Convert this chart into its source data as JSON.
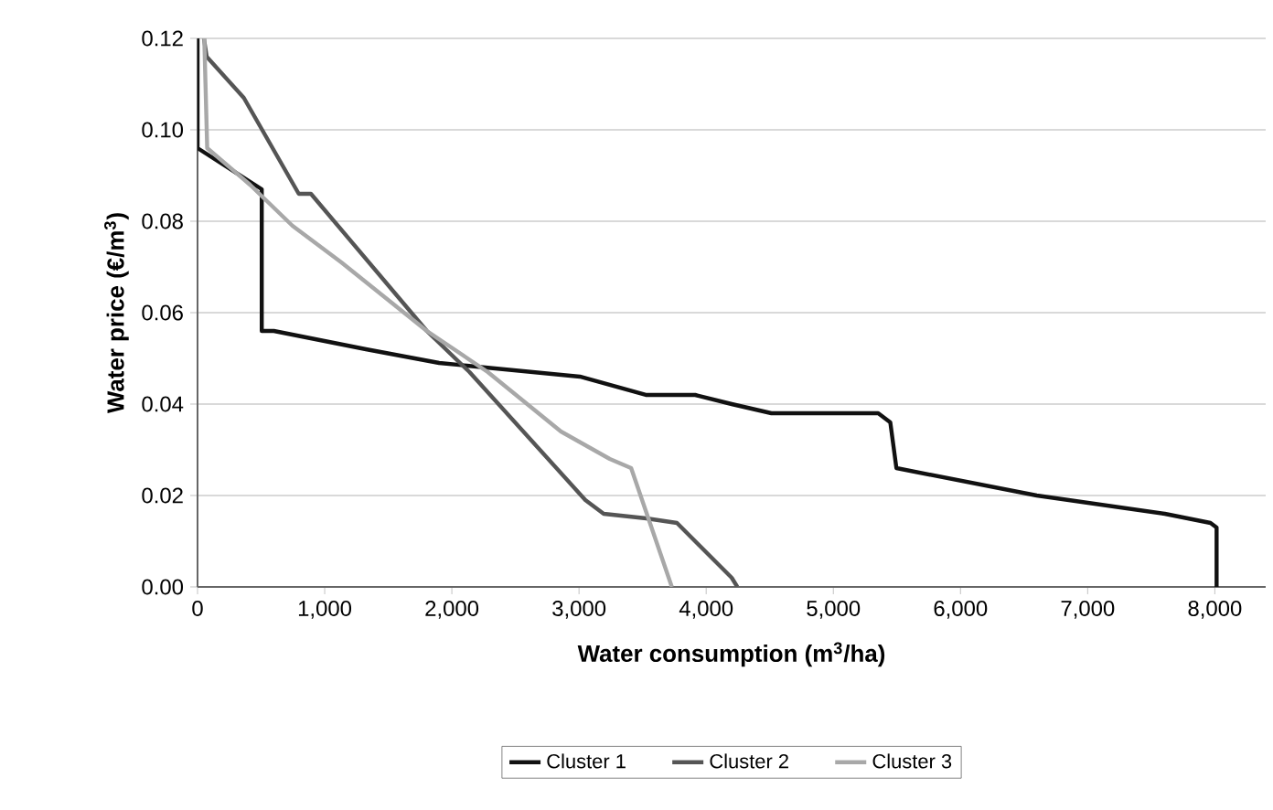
{
  "chart_data": {
    "type": "line",
    "xlabel": "Water consumption (m$^{3}$/ha)",
    "ylabel": "Water price (€/m$^{3}$)",
    "xlim": [
      0,
      8400
    ],
    "ylim": [
      0,
      0.12
    ],
    "xticks": [
      {
        "value": 0,
        "label": "0"
      },
      {
        "value": 1000,
        "label": "1,000"
      },
      {
        "value": 2000,
        "label": "2,000"
      },
      {
        "value": 3000,
        "label": "3,000"
      },
      {
        "value": 4000,
        "label": "4,000"
      },
      {
        "value": 5000,
        "label": "5,000"
      },
      {
        "value": 6000,
        "label": "6,000"
      },
      {
        "value": 7000,
        "label": "7,000"
      },
      {
        "value": 8000,
        "label": "8,000"
      }
    ],
    "yticks": [
      {
        "value": 0,
        "label": "0.00"
      },
      {
        "value": 0.02,
        "label": "0.02"
      },
      {
        "value": 0.04,
        "label": "0.04"
      },
      {
        "value": 0.06,
        "label": "0.06"
      },
      {
        "value": 0.08,
        "label": "0.08"
      },
      {
        "value": 0.1,
        "label": "0.10"
      },
      {
        "value": 0.12,
        "label": "0.12"
      }
    ],
    "grid": "y",
    "legend": "bottom",
    "marker": "none",
    "line_style": "solid",
    "series": [
      {
        "name": "Cluster 1",
        "color": "#111111",
        "x": [
          0,
          0,
          505,
          505,
          600,
          1324,
          1900,
          3007,
          3525,
          3914,
          4201,
          4513,
          5353,
          5448,
          5496,
          6600,
          7607,
          7966,
          8014,
          8014
        ],
        "values": [
          0.12,
          0.096,
          0.087,
          0.056,
          0.056,
          0.052,
          0.049,
          0.046,
          0.042,
          0.042,
          0.04,
          0.038,
          0.038,
          0.036,
          0.026,
          0.02,
          0.016,
          0.014,
          0.013,
          0
        ]
      },
      {
        "name": "Cluster 2",
        "color": "#555555",
        "x": [
          50,
          72,
          364,
          796,
          892,
          1803,
          2139,
          3050,
          3194,
          3529,
          3770,
          4201,
          4245
        ],
        "values": [
          0.12,
          0.116,
          0.107,
          0.086,
          0.086,
          0.056,
          0.047,
          0.019,
          0.016,
          0.015,
          0.014,
          0.002,
          0
        ]
      },
      {
        "name": "Cluster 3",
        "color": "#a8a8a8",
        "x": [
          53,
          76,
          412,
          747,
          1131,
          1803,
          2283,
          2858,
          3242,
          3410,
          3730
        ],
        "values": [
          0.12,
          0.096,
          0.088,
          0.079,
          0.071,
          0.056,
          0.047,
          0.034,
          0.028,
          0.026,
          0
        ]
      }
    ]
  }
}
